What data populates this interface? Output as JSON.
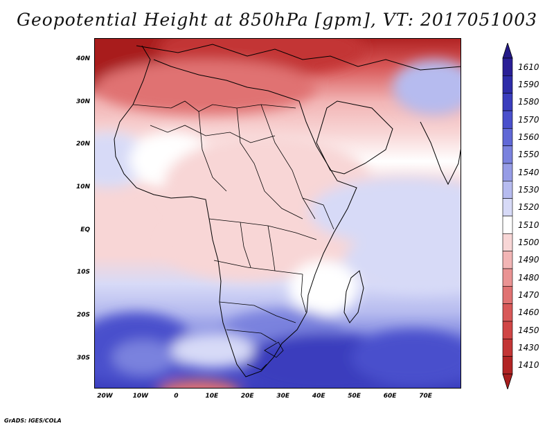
{
  "title": "Geopotential Height at 850hPa [gpm], VT: 2017051003",
  "credit": "GrADS: IGES/COLA",
  "map": {
    "lon_range": [
      -23,
      80
    ],
    "lat_range": [
      -37,
      45
    ],
    "lat_ticks": [
      {
        "value": 40,
        "label": "40N"
      },
      {
        "value": 30,
        "label": "30N"
      },
      {
        "value": 20,
        "label": "20N"
      },
      {
        "value": 10,
        "label": "10N"
      },
      {
        "value": 0,
        "label": "EQ"
      },
      {
        "value": -10,
        "label": "10S"
      },
      {
        "value": -20,
        "label": "20S"
      },
      {
        "value": -30,
        "label": "30S"
      }
    ],
    "lon_ticks": [
      {
        "value": -20,
        "label": "20W"
      },
      {
        "value": -10,
        "label": "10W"
      },
      {
        "value": 0,
        "label": "0"
      },
      {
        "value": 10,
        "label": "10E"
      },
      {
        "value": 20,
        "label": "20E"
      },
      {
        "value": 30,
        "label": "30E"
      },
      {
        "value": 40,
        "label": "40E"
      },
      {
        "value": 50,
        "label": "50E"
      },
      {
        "value": 60,
        "label": "60E"
      },
      {
        "value": 70,
        "label": "70E"
      }
    ]
  },
  "colorbar": {
    "levels": [
      {
        "label": "1610",
        "color": "#2a1f96"
      },
      {
        "label": "1590",
        "color": "#2e2ca8"
      },
      {
        "label": "1580",
        "color": "#3a3dbd"
      },
      {
        "label": "1570",
        "color": "#4a50cc"
      },
      {
        "label": "1560",
        "color": "#6068d6"
      },
      {
        "label": "1550",
        "color": "#7a82de"
      },
      {
        "label": "1540",
        "color": "#969ce6"
      },
      {
        "label": "1530",
        "color": "#b6bbef"
      },
      {
        "label": "1520",
        "color": "#d7daf7"
      },
      {
        "label": "1510",
        "color": "#ffffff"
      },
      {
        "label": "1500",
        "color": "#f8d6d6"
      },
      {
        "label": "1490",
        "color": "#f2b5b5"
      },
      {
        "label": "1480",
        "color": "#ea9393"
      },
      {
        "label": "1470",
        "color": "#e07272"
      },
      {
        "label": "1460",
        "color": "#d85858"
      },
      {
        "label": "1450",
        "color": "#d04545"
      },
      {
        "label": "1430",
        "color": "#c33535"
      },
      {
        "label": "1410",
        "color": "#b22424"
      }
    ],
    "top_color": "#241a88",
    "bottom_color": "#a81e1e"
  }
}
